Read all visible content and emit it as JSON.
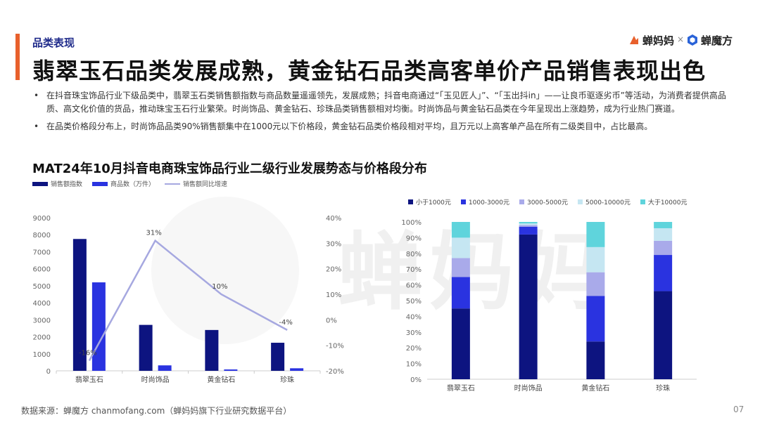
{
  "header": {
    "section_label": "品类表现",
    "title": "翡翠玉石品类发展成熟，黄金钻石品类高客单价产品销售表现出色",
    "logo_chanmama": "蝉妈妈",
    "logo_separator": "×",
    "logo_chanmofang": "蝉魔方"
  },
  "bullets": [
    "在抖音珠宝饰品行业下级品类中，翡翠玉石类销售额指数与商品数量遥遥领先，发展成熟；抖音电商通过“「玉见匠人」”、“「玉出抖in」——让良币驱逐劣币”等活动，为消费者提供高品质、高文化价值的货品，推动珠宝玉石行业繁荣。时尚饰品、黄金钻石、珍珠品类销售额相对均衡。时尚饰品与黄金钻石品类在今年呈现出上涨趋势，成为行业热门赛道。",
    "在品类价格段分布上，时尚饰品品类90%销售额集中在1000元以下价格段，黄金钻石品类价格段相对平均，且万元以上高客单产品在所有二级类目中，占比最高。"
  ],
  "chart_title": "MAT24年10月抖音电商珠宝饰品行业二级行业发展势态与价格段分布",
  "colors": {
    "accent": "#e8602c",
    "brand_navy": "#1e2a8a",
    "bar_dark": "#0d1480",
    "bar_blue": "#2a33e0",
    "line": "#a6a8e0",
    "seg1": "#0d1480",
    "seg2": "#2a33e0",
    "seg3": "#a9aaea",
    "seg4": "#c5e6f2",
    "seg5": "#5fd4dc"
  },
  "chart_data": [
    {
      "type": "bar",
      "categories": [
        "翡翠玉石",
        "时尚饰品",
        "黄金钻石",
        "珍珠"
      ],
      "series": [
        {
          "name": "销售额指数",
          "values": [
            7750,
            2700,
            2400,
            1650
          ]
        },
        {
          "name": "商品数（万件）",
          "values": [
            5200,
            320,
            80,
            150
          ]
        }
      ],
      "line_series": {
        "name": "销售额同比增速",
        "values": [
          -16,
          31,
          10,
          -4
        ],
        "labels": [
          "-16%",
          "31%",
          "10%",
          "-4%"
        ]
      },
      "y_left": {
        "ticks": [
          "9000",
          "8000",
          "7000",
          "6000",
          "5000",
          "4000",
          "3000",
          "2000",
          "1000",
          "0"
        ],
        "ylim": [
          0,
          9000
        ]
      },
      "y_right": {
        "ticks": [
          "40%",
          "30%",
          "20%",
          "10%",
          "0%",
          "-10%",
          "-20%"
        ],
        "ylim": [
          -20,
          40
        ]
      },
      "grid": false,
      "legend": "top-left"
    },
    {
      "type": "bar",
      "stacked": true,
      "categories": [
        "翡翠玉石",
        "时尚饰品",
        "黄金钻石",
        "珍珠"
      ],
      "series": [
        {
          "name": "小于1000元",
          "values": [
            45,
            92,
            24,
            56
          ]
        },
        {
          "name": "1000-3000元",
          "values": [
            20,
            5,
            29,
            23
          ]
        },
        {
          "name": "3000-5000元",
          "values": [
            12,
            1,
            15,
            9
          ]
        },
        {
          "name": "5000-10000元",
          "values": [
            13,
            1,
            16,
            8
          ]
        },
        {
          "name": "大于10000元",
          "values": [
            10,
            1,
            16,
            4
          ]
        }
      ],
      "y": {
        "ticks": [
          "100%",
          "90%",
          "80%",
          "70%",
          "60%",
          "50%",
          "40%",
          "30%",
          "20%",
          "10%",
          "0%"
        ],
        "ylim": [
          0,
          100
        ]
      },
      "grid": false,
      "legend": "top"
    }
  ],
  "footer": {
    "source": "数据来源：蝉魔方 chanmofang.com（蝉妈妈旗下行业研究数据平台）",
    "page": "07"
  }
}
